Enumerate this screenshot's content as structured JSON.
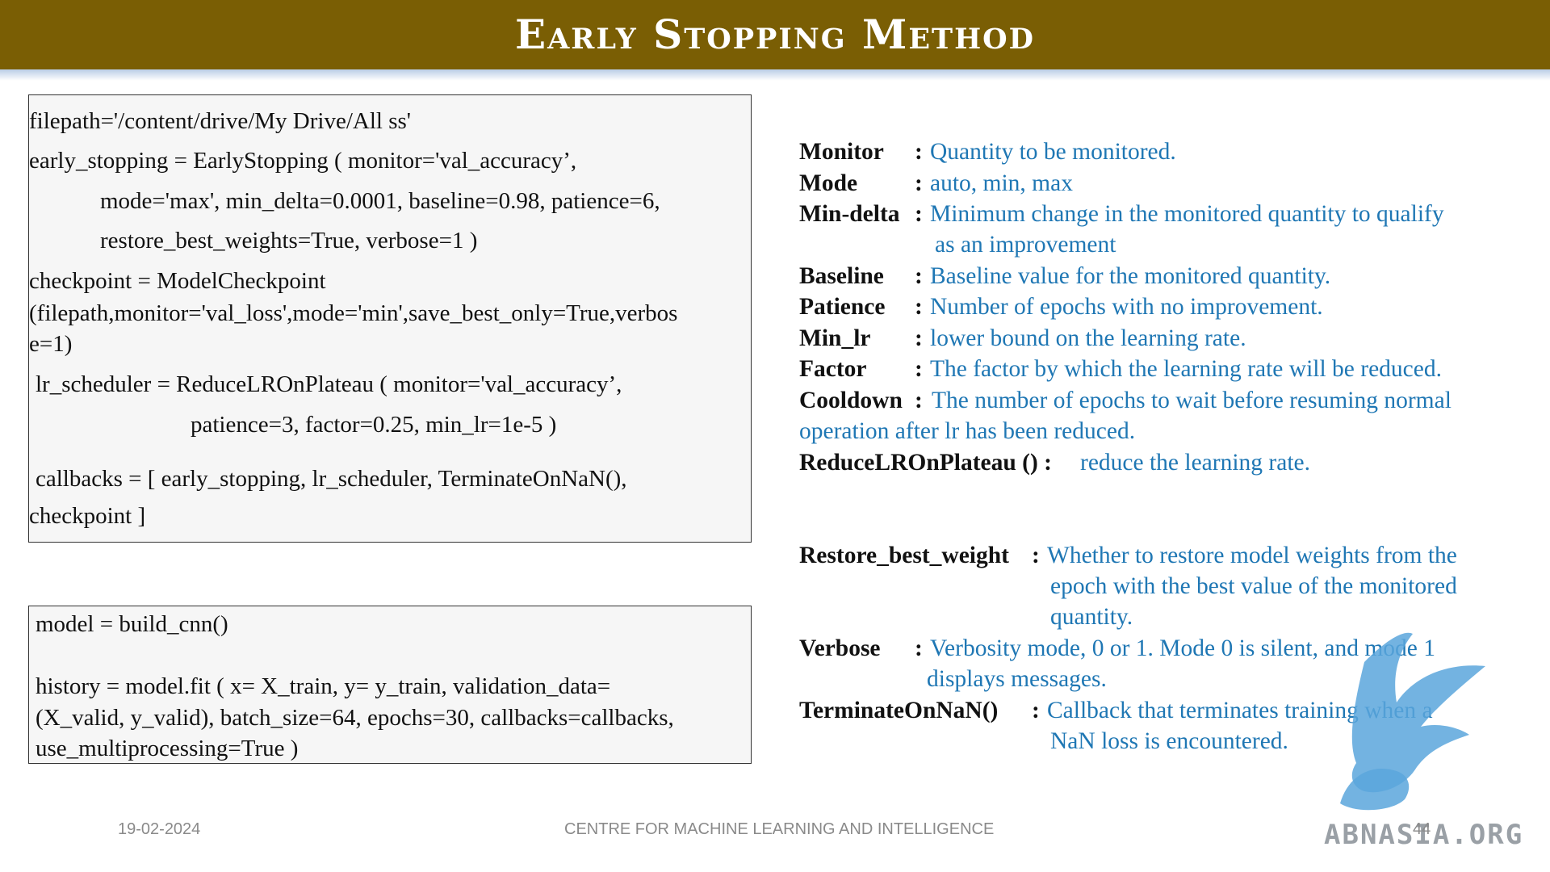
{
  "header": {
    "title": "Early Stopping Method"
  },
  "code_box_1": {
    "lines": [
      "filepath='/content/drive/My Drive/All ss'",
      "early_stopping = EarlyStopping ( monitor='val_accuracy’,",
      "mode='max', min_delta=0.0001, baseline=0.98, patience=6,",
      "restore_best_weights=True, verbose=1 )",
      "checkpoint = ModelCheckpoint",
      "(filepath,monitor='val_loss',mode='min',save_best_only=True,verbos",
      "e=1)",
      "lr_scheduler = ReduceLROnPlateau ( monitor='val_accuracy’,",
      "patience=3, factor=0.25, min_lr=1e-5 )",
      "callbacks = [ early_stopping, lr_scheduler, TerminateOnNaN(),",
      "checkpoint ]"
    ]
  },
  "code_box_2": {
    "lines": [
      "model = build_cnn()",
      "history = model.fit ( x= X_train, y= y_train, validation_data=",
      "(X_valid, y_valid), batch_size=64, epochs=30, callbacks=callbacks,",
      "use_multiprocessing=True )"
    ]
  },
  "definitions": {
    "monitor": {
      "term": "Monitor",
      "colon": ":",
      "desc": "Quantity to be monitored."
    },
    "mode": {
      "term": "Mode",
      "colon": ":",
      "desc": "auto, min, max"
    },
    "min_delta": {
      "term": "Min-delta",
      "colon": ":",
      "desc": "Minimum change in the monitored quantity to qualify",
      "desc2": "as an improvement"
    },
    "baseline": {
      "term": "Baseline",
      "colon": ":",
      "desc": "Baseline value for the monitored quantity."
    },
    "patience": {
      "term": "Patience",
      "colon": ":",
      "desc": "Number of epochs with no improvement."
    },
    "min_lr": {
      "term": "Min_lr",
      "colon": ":",
      "desc": "lower bound on the learning rate."
    },
    "factor": {
      "term": "Factor",
      "colon": ":",
      "desc": "The factor by which the learning rate will be reduced."
    },
    "cooldown": {
      "term": "Cooldown",
      "colon": ":",
      "desc": "The number of epochs to wait before resuming normal",
      "desc2": "operation after lr has been reduced."
    },
    "reduce": {
      "term": "ReduceLROnPlateau () :",
      "desc": "reduce the learning rate."
    },
    "restore": {
      "term": "Restore_best_weight",
      "colon": ":",
      "desc": "Whether to restore model weights from the",
      "desc2": "epoch with the best value of the monitored",
      "desc3": "quantity."
    },
    "verbose": {
      "term": "Verbose",
      "colon": ":",
      "desc": "Verbosity mode, 0 or 1. Mode 0 is silent, and mode 1",
      "desc2": "displays messages."
    },
    "terminate": {
      "term": "TerminateOnNaN()",
      "colon": ":",
      "desc": "Callback that terminates training when a",
      "desc2": "NaN loss is encountered."
    }
  },
  "footer": {
    "date": "19-02-2024",
    "center_text": "CENTRE FOR MACHINE LEARNING AND INTELLIGENCE",
    "page_number": "44",
    "watermark": "ABNASIA.ORG"
  }
}
